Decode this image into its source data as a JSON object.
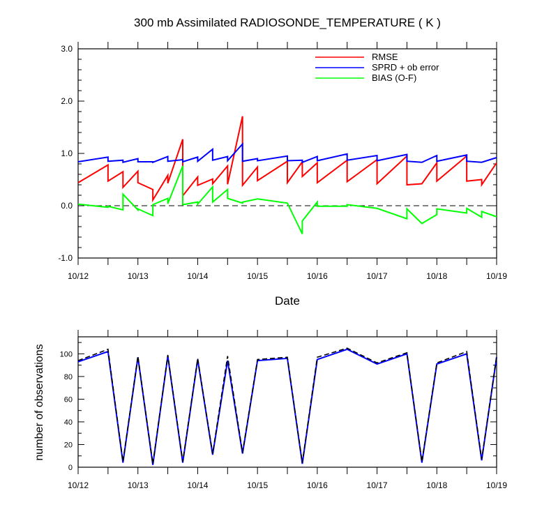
{
  "chart_data": [
    {
      "type": "line",
      "title": "300 mb Assimilated RADIOSONDE_TEMPERATURE ( K )",
      "xlabel": "Date",
      "ylabel": "",
      "xlim": [
        "10/12 00Z",
        "10/19 00Z"
      ],
      "ylim": [
        -1.0,
        3.0
      ],
      "yticks": [
        "-1.0",
        "0.0",
        "1.0",
        "2.0",
        "3.0"
      ],
      "xticks": [
        "10/12",
        "10/13",
        "10/14",
        "10/15",
        "10/16",
        "10/17",
        "10/18",
        "10/19"
      ],
      "legend_position": "top-right",
      "zero_line": "dashed",
      "series": [
        {
          "name": "RMSE",
          "color": "#ff0000",
          "points": [
            [
              "10/12 00Z",
              0.44
            ],
            [
              "10/12 12Z",
              0.78
            ],
            [
              "10/12 12Z",
              0.47
            ],
            [
              "10/12 18Z",
              0.65
            ],
            [
              "10/12 18Z",
              0.35
            ],
            [
              "10/13 00Z",
              0.66
            ],
            [
              "10/13 00Z",
              0.44
            ],
            [
              "10/13 06Z",
              0.31
            ],
            [
              "10/13 06Z",
              0.11
            ],
            [
              "10/13 12Z",
              0.58
            ],
            [
              "10/13 12Z",
              0.43
            ],
            [
              "10/13 18Z",
              1.27
            ],
            [
              "10/13 18Z",
              0.19
            ],
            [
              "10/14 00Z",
              0.55
            ],
            [
              "10/14 00Z",
              0.39
            ],
            [
              "10/14 06Z",
              0.51
            ],
            [
              "10/14 06Z",
              0.42
            ],
            [
              "10/14 12Z",
              0.76
            ],
            [
              "10/14 12Z",
              0.41
            ],
            [
              "10/14 18Z",
              1.71
            ],
            [
              "10/14 18Z",
              0.39
            ],
            [
              "10/15 00Z",
              0.74
            ],
            [
              "10/15 00Z",
              0.48
            ],
            [
              "10/15 12Z",
              0.85
            ],
            [
              "10/15 12Z",
              0.44
            ],
            [
              "10/15 18Z",
              0.84
            ],
            [
              "10/15 18Z",
              0.56
            ],
            [
              "10/16 00Z",
              0.82
            ],
            [
              "10/16 00Z",
              0.44
            ],
            [
              "10/16 12Z",
              0.87
            ],
            [
              "10/16 12Z",
              0.46
            ],
            [
              "10/17 00Z",
              0.88
            ],
            [
              "10/17 00Z",
              0.42
            ],
            [
              "10/17 12Z",
              0.95
            ],
            [
              "10/17 12Z",
              0.4
            ],
            [
              "10/17 18Z",
              0.42
            ],
            [
              "10/18 00Z",
              0.82
            ],
            [
              "10/18 00Z",
              0.47
            ],
            [
              "10/18 12Z",
              0.95
            ],
            [
              "10/18 12Z",
              0.47
            ],
            [
              "10/18 18Z",
              0.5
            ],
            [
              "10/18 18Z",
              0.4
            ],
            [
              "10/19 00Z",
              0.82
            ]
          ]
        },
        {
          "name": "SPRD + ob error",
          "color": "#0000ff",
          "points": [
            [
              "10/12 00Z",
              0.84
            ],
            [
              "10/12 12Z",
              0.93
            ],
            [
              "10/12 12Z",
              0.85
            ],
            [
              "10/12 18Z",
              0.87
            ],
            [
              "10/12 18Z",
              0.83
            ],
            [
              "10/13 00Z",
              0.9
            ],
            [
              "10/13 00Z",
              0.84
            ],
            [
              "10/13 06Z",
              0.84
            ],
            [
              "10/13 06Z",
              0.83
            ],
            [
              "10/13 12Z",
              0.94
            ],
            [
              "10/13 12Z",
              0.85
            ],
            [
              "10/13 18Z",
              0.88
            ],
            [
              "10/13 18Z",
              0.84
            ],
            [
              "10/14 00Z",
              0.93
            ],
            [
              "10/14 00Z",
              0.85
            ],
            [
              "10/14 06Z",
              1.08
            ],
            [
              "10/14 06Z",
              0.87
            ],
            [
              "10/14 12Z",
              0.94
            ],
            [
              "10/14 12Z",
              0.86
            ],
            [
              "10/14 18Z",
              1.18
            ],
            [
              "10/14 18Z",
              0.85
            ],
            [
              "10/15 00Z",
              0.9
            ],
            [
              "10/15 00Z",
              0.86
            ],
            [
              "10/15 12Z",
              0.95
            ],
            [
              "10/15 12Z",
              0.86
            ],
            [
              "10/15 18Z",
              0.87
            ],
            [
              "10/15 18Z",
              0.83
            ],
            [
              "10/16 00Z",
              0.94
            ],
            [
              "10/16 00Z",
              0.86
            ],
            [
              "10/16 12Z",
              0.99
            ],
            [
              "10/16 12Z",
              0.87
            ],
            [
              "10/17 00Z",
              0.96
            ],
            [
              "10/17 00Z",
              0.86
            ],
            [
              "10/17 12Z",
              0.98
            ],
            [
              "10/17 12Z",
              0.85
            ],
            [
              "10/17 18Z",
              0.83
            ],
            [
              "10/18 00Z",
              0.96
            ],
            [
              "10/18 00Z",
              0.85
            ],
            [
              "10/18 12Z",
              0.97
            ],
            [
              "10/18 12Z",
              0.85
            ],
            [
              "10/18 18Z",
              0.83
            ],
            [
              "10/19 00Z",
              0.92
            ]
          ]
        },
        {
          "name": "BIAS (O-F)",
          "color": "#00ff00",
          "points": [
            [
              "10/12 00Z",
              0.03
            ],
            [
              "10/12 12Z",
              -0.03
            ],
            [
              "10/12 12Z",
              -0.01
            ],
            [
              "10/12 18Z",
              -0.08
            ],
            [
              "10/12 18Z",
              0.22
            ],
            [
              "10/13 00Z",
              -0.08
            ],
            [
              "10/13 00Z",
              -0.06
            ],
            [
              "10/13 06Z",
              -0.19
            ],
            [
              "10/13 06Z",
              0.02
            ],
            [
              "10/13 12Z",
              0.14
            ],
            [
              "10/13 12Z",
              0.04
            ],
            [
              "10/13 18Z",
              0.76
            ],
            [
              "10/13 18Z",
              0.02
            ],
            [
              "10/14 00Z",
              0.07
            ],
            [
              "10/14 00Z",
              0.03
            ],
            [
              "10/14 06Z",
              0.36
            ],
            [
              "10/14 06Z",
              0.07
            ],
            [
              "10/14 12Z",
              0.31
            ],
            [
              "10/14 12Z",
              0.14
            ],
            [
              "10/14 18Z",
              0.05
            ],
            [
              "10/14 18Z",
              0.07
            ],
            [
              "10/15 00Z",
              0.13
            ],
            [
              "10/15 12Z",
              0.05
            ],
            [
              "10/15 18Z",
              -0.54
            ],
            [
              "10/15 18Z",
              -0.29
            ],
            [
              "10/16 00Z",
              0.07
            ],
            [
              "10/16 00Z",
              -0.01
            ],
            [
              "10/16 12Z",
              -0.01
            ],
            [
              "10/16 12Z",
              0.02
            ],
            [
              "10/17 00Z",
              -0.05
            ],
            [
              "10/17 12Z",
              -0.25
            ],
            [
              "10/17 12Z",
              -0.06
            ],
            [
              "10/17 18Z",
              -0.34
            ],
            [
              "10/18 00Z",
              -0.17
            ],
            [
              "10/18 00Z",
              -0.06
            ],
            [
              "10/18 12Z",
              -0.14
            ],
            [
              "10/18 12Z",
              -0.05
            ],
            [
              "10/18 18Z",
              -0.22
            ],
            [
              "10/18 18Z",
              -0.11
            ],
            [
              "10/19 00Z",
              -0.21
            ]
          ]
        }
      ]
    },
    {
      "type": "line",
      "title": "",
      "xlabel": "",
      "ylabel": "number of observations",
      "xlim": [
        "10/12 00Z",
        "10/19 00Z"
      ],
      "ylim": [
        0,
        115
      ],
      "yticks": [
        "0",
        "20",
        "40",
        "60",
        "80",
        "100"
      ],
      "xticks": [
        "10/12",
        "10/13",
        "10/14",
        "10/15",
        "10/16",
        "10/17",
        "10/18",
        "10/19"
      ],
      "series": [
        {
          "style": "solid",
          "color": "#0000ff",
          "points": [
            [
              "10/12 00Z",
              93
            ],
            [
              "10/12 12Z",
              102
            ],
            [
              "10/12 18Z",
              4
            ],
            [
              "10/13 00Z",
              97
            ],
            [
              "10/13 06Z",
              2
            ],
            [
              "10/13 12Z",
              98
            ],
            [
              "10/13 18Z",
              4
            ],
            [
              "10/14 00Z",
              95
            ],
            [
              "10/14 06Z",
              11
            ],
            [
              "10/14 12Z",
              94
            ],
            [
              "10/14 18Z",
              12
            ],
            [
              "10/15 00Z",
              94
            ],
            [
              "10/15 12Z",
              96
            ],
            [
              "10/15 18Z",
              3
            ],
            [
              "10/16 00Z",
              95
            ],
            [
              "10/16 12Z",
              104
            ],
            [
              "10/17 00Z",
              91
            ],
            [
              "10/17 12Z",
              100
            ],
            [
              "10/17 18Z",
              4
            ],
            [
              "10/18 00Z",
              91
            ],
            [
              "10/18 12Z",
              100
            ],
            [
              "10/18 18Z",
              6
            ],
            [
              "10/19 00Z",
              97
            ]
          ]
        },
        {
          "style": "dashed",
          "color": "#000000",
          "points": [
            [
              "10/12 00Z",
              94
            ],
            [
              "10/12 12Z",
              104
            ],
            [
              "10/12 18Z",
              5
            ],
            [
              "10/13 00Z",
              98
            ],
            [
              "10/13 06Z",
              3
            ],
            [
              "10/13 12Z",
              99
            ],
            [
              "10/13 18Z",
              5
            ],
            [
              "10/14 00Z",
              96
            ],
            [
              "10/14 06Z",
              12
            ],
            [
              "10/14 12Z",
              98
            ],
            [
              "10/14 18Z",
              13
            ],
            [
              "10/15 00Z",
              95
            ],
            [
              "10/15 12Z",
              97
            ],
            [
              "10/15 18Z",
              4
            ],
            [
              "10/16 00Z",
              97
            ],
            [
              "10/16 12Z",
              105
            ],
            [
              "10/17 00Z",
              92
            ],
            [
              "10/17 12Z",
              101
            ],
            [
              "10/17 18Z",
              5
            ],
            [
              "10/18 00Z",
              92
            ],
            [
              "10/18 12Z",
              102
            ],
            [
              "10/18 18Z",
              7
            ],
            [
              "10/19 00Z",
              98
            ]
          ]
        }
      ]
    }
  ]
}
